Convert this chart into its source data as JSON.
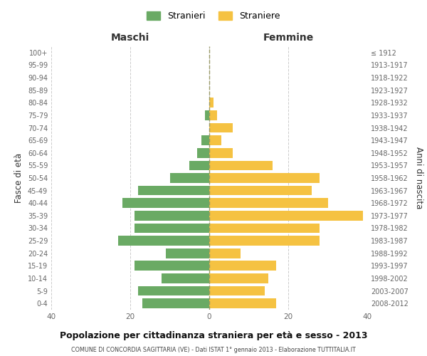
{
  "age_groups": [
    "0-4",
    "5-9",
    "10-14",
    "15-19",
    "20-24",
    "25-29",
    "30-34",
    "35-39",
    "40-44",
    "45-49",
    "50-54",
    "55-59",
    "60-64",
    "65-69",
    "70-74",
    "75-79",
    "80-84",
    "85-89",
    "90-94",
    "95-99",
    "100+"
  ],
  "birth_years": [
    "2008-2012",
    "2003-2007",
    "1998-2002",
    "1993-1997",
    "1988-1992",
    "1983-1987",
    "1978-1982",
    "1973-1977",
    "1968-1972",
    "1963-1967",
    "1958-1962",
    "1953-1957",
    "1948-1952",
    "1943-1947",
    "1938-1942",
    "1933-1937",
    "1928-1932",
    "1923-1927",
    "1918-1922",
    "1913-1917",
    "≤ 1912"
  ],
  "males": [
    17,
    18,
    12,
    19,
    11,
    23,
    19,
    19,
    22,
    18,
    10,
    5,
    3,
    2,
    0,
    1,
    0,
    0,
    0,
    0,
    0
  ],
  "females": [
    17,
    14,
    15,
    17,
    8,
    28,
    28,
    39,
    30,
    26,
    28,
    16,
    6,
    3,
    6,
    2,
    1,
    0,
    0,
    0,
    0
  ],
  "male_color": "#6aaa64",
  "female_color": "#f5c242",
  "background_color": "#ffffff",
  "grid_color": "#cccccc",
  "title": "Popolazione per cittadinanza straniera per età e sesso - 2013",
  "subtitle": "COMUNE DI CONCORDIA SAGITTARIA (VE) - Dati ISTAT 1° gennaio 2013 - Elaborazione TUTTITALIA.IT",
  "xlabel_left": "Maschi",
  "xlabel_right": "Femmine",
  "ylabel_left": "Fasce di età",
  "ylabel_right": "Anni di nascita",
  "legend_males": "Stranieri",
  "legend_females": "Straniere",
  "xlim": 40
}
